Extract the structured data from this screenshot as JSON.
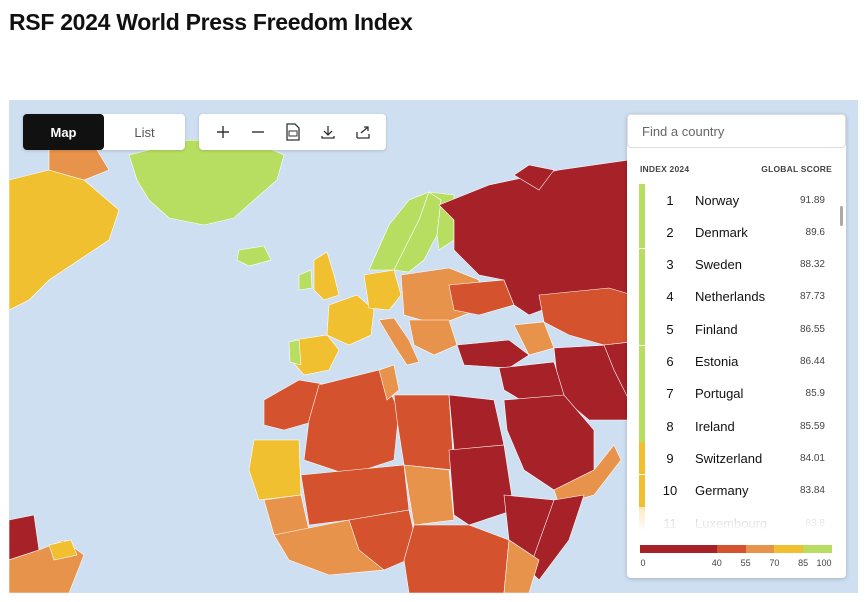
{
  "title": "RSF 2024 World Press Freedom Index",
  "view_toggle": {
    "map": "Map",
    "list": "List",
    "active": "map"
  },
  "tools": [
    "zoom-in",
    "zoom-out",
    "rsf-document",
    "download",
    "share"
  ],
  "search": {
    "placeholder": "Find a country"
  },
  "list_header": {
    "left": "INDEX 2024",
    "right": "GLOBAL SCORE"
  },
  "rankings": [
    {
      "rank": "1",
      "country": "Norway",
      "score": "91.89",
      "color": "#b7de60"
    },
    {
      "rank": "2",
      "country": "Denmark",
      "score": "89.6",
      "color": "#b7de60"
    },
    {
      "rank": "3",
      "country": "Sweden",
      "score": "88.32",
      "color": "#b7de60"
    },
    {
      "rank": "4",
      "country": "Netherlands",
      "score": "87.73",
      "color": "#b7de60"
    },
    {
      "rank": "5",
      "country": "Finland",
      "score": "86.55",
      "color": "#b7de60"
    },
    {
      "rank": "6",
      "country": "Estonia",
      "score": "86.44",
      "color": "#b7de60"
    },
    {
      "rank": "7",
      "country": "Portugal",
      "score": "85.9",
      "color": "#b7de60"
    },
    {
      "rank": "8",
      "country": "Ireland",
      "score": "85.59",
      "color": "#b7de60"
    },
    {
      "rank": "9",
      "country": "Switzerland",
      "score": "84.01",
      "color": "#f0c030"
    },
    {
      "rank": "10",
      "country": "Germany",
      "score": "83.84",
      "color": "#f0c030"
    },
    {
      "rank": "11",
      "country": "Luxembourg",
      "score": "83.8",
      "color": "#f0c030"
    }
  ],
  "legend": {
    "ticks": [
      "0",
      "40",
      "55",
      "70",
      "85",
      "100"
    ],
    "colors": [
      "#a72228",
      "#d4522e",
      "#e8934c",
      "#f0c030",
      "#b7de60"
    ]
  },
  "map_colors": {
    "ocean": "#cddff0",
    "very_serious": "#a72228",
    "difficult": "#d4522e",
    "problematic": "#e8934c",
    "satisfactory": "#f0c030",
    "good": "#b7de60"
  }
}
